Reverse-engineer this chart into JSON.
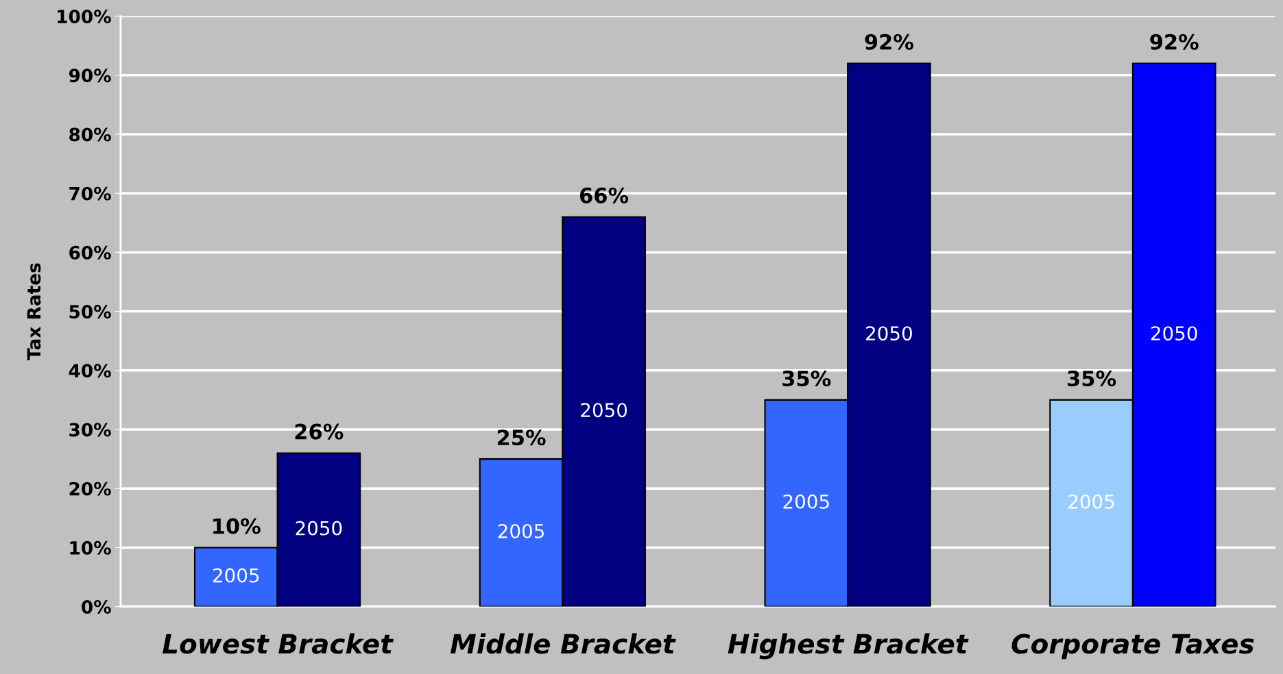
{
  "chart_data": {
    "type": "bar",
    "ylabel": "Tax Rates",
    "categories": [
      "Lowest Bracket",
      "Middle Bracket",
      "Highest Bracket",
      "Corporate Taxes"
    ],
    "series": [
      {
        "name": "2005",
        "colors": [
          "#3366ff",
          "#3366ff",
          "#3366ff",
          "#99ccff"
        ],
        "values": [
          10,
          25,
          35,
          35
        ],
        "value_labels": [
          "10%",
          "25%",
          "35%",
          "35%"
        ]
      },
      {
        "name": "2050",
        "colors": [
          "#000080",
          "#000080",
          "#000080",
          "#0000ff"
        ],
        "values": [
          26,
          66,
          92,
          92
        ],
        "value_labels": [
          "26%",
          "66%",
          "92%",
          "92%"
        ]
      }
    ],
    "ylim": [
      0,
      100
    ],
    "yticks": [
      {
        "value": 0,
        "label": "0%"
      },
      {
        "value": 10,
        "label": "10%"
      },
      {
        "value": 20,
        "label": "20%"
      },
      {
        "value": 30,
        "label": "30%"
      },
      {
        "value": 40,
        "label": "40%"
      },
      {
        "value": 50,
        "label": "50%"
      },
      {
        "value": 60,
        "label": "60%"
      },
      {
        "value": 70,
        "label": "70%"
      },
      {
        "value": 80,
        "label": "80%"
      },
      {
        "value": 90,
        "label": "90%"
      },
      {
        "value": 100,
        "label": "100%"
      }
    ],
    "grid": "y",
    "legend": false
  }
}
